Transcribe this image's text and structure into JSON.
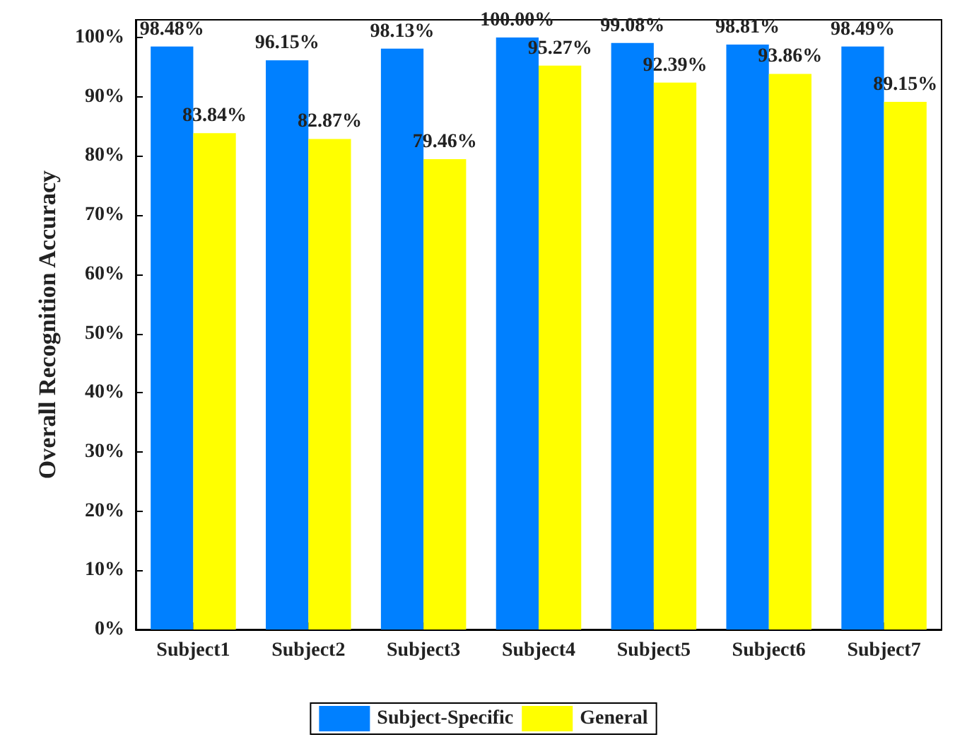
{
  "chart_data": {
    "type": "bar",
    "ylabel": "Overall Recognition Accuracy",
    "categories": [
      "Subject1",
      "Subject2",
      "Subject3",
      "Subject4",
      "Subject5",
      "Subject6",
      "Subject7"
    ],
    "series": [
      {
        "name": "Subject-Specific",
        "color": "#0080ff",
        "values": [
          98.48,
          96.15,
          98.13,
          100.0,
          99.08,
          98.81,
          98.49
        ],
        "value_labels": [
          "98.48%",
          "96.15%",
          "98.13%",
          "100.00%",
          "99.08%",
          "98.81%",
          "98.49%"
        ]
      },
      {
        "name": "General",
        "color": "#ffff00",
        "values": [
          83.84,
          82.87,
          79.46,
          95.27,
          92.39,
          93.86,
          89.15
        ],
        "value_labels": [
          "83.84%",
          "82.87%",
          "79.46%",
          "95.27%",
          "92.39%",
          "93.86%",
          "89.15%"
        ]
      }
    ],
    "ylim": [
      0,
      103
    ],
    "yticks": [
      {
        "value": 0,
        "label": "0%"
      },
      {
        "value": 10,
        "label": "10%"
      },
      {
        "value": 20,
        "label": "20%"
      },
      {
        "value": 30,
        "label": "30%"
      },
      {
        "value": 40,
        "label": "40%"
      },
      {
        "value": 50,
        "label": "50%"
      },
      {
        "value": 60,
        "label": "60%"
      },
      {
        "value": 70,
        "label": "70%"
      },
      {
        "value": 80,
        "label": "80%"
      },
      {
        "value": 90,
        "label": "90%"
      },
      {
        "value": 100,
        "label": "100%"
      }
    ],
    "grid": false,
    "legend": "bottom"
  }
}
